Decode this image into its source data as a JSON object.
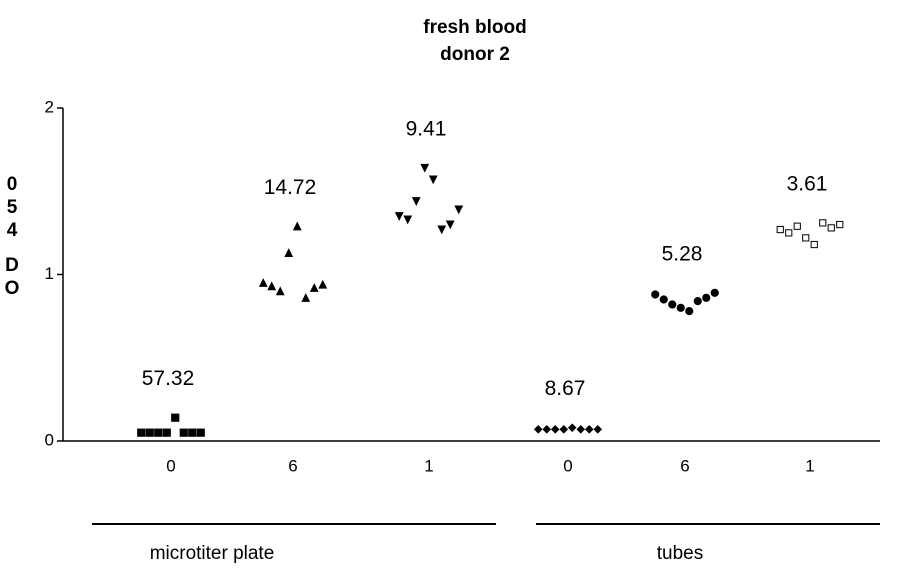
{
  "chart_data": {
    "type": "dot",
    "title": [
      "fresh blood",
      "donor 2"
    ],
    "y_label": [
      "0",
      "5",
      "4",
      "D",
      "O"
    ],
    "categories": [
      "0",
      "6",
      "1",
      "0",
      "6",
      "1"
    ],
    "markers": [
      "square",
      "triangle-up",
      "triangle-down",
      "diamond",
      "circle",
      "open-square"
    ],
    "values": [
      [
        0.05,
        0.05,
        0.05,
        0.05,
        0.14,
        0.05,
        0.05,
        0.05
      ],
      [
        0.95,
        0.93,
        0.9,
        1.13,
        1.29,
        0.86,
        0.92,
        0.94
      ],
      [
        1.35,
        1.33,
        1.44,
        1.64,
        1.57,
        1.27,
        1.3,
        1.39
      ],
      [
        0.07,
        0.07,
        0.07,
        0.07,
        0.08,
        0.07,
        0.07,
        0.07
      ],
      [
        0.88,
        0.85,
        0.82,
        0.8,
        0.78,
        0.84,
        0.86,
        0.89
      ],
      [
        1.27,
        1.25,
        1.29,
        1.22,
        1.18,
        1.31,
        1.28,
        1.3
      ]
    ],
    "annotations": [
      "57.32",
      "14.72",
      "9.41",
      "8.67",
      "5.28",
      "3.61"
    ],
    "groups": [
      "microtiter plate",
      "tubes"
    ],
    "ylim": [
      0,
      2
    ],
    "yticks": [
      0,
      1,
      2
    ]
  }
}
